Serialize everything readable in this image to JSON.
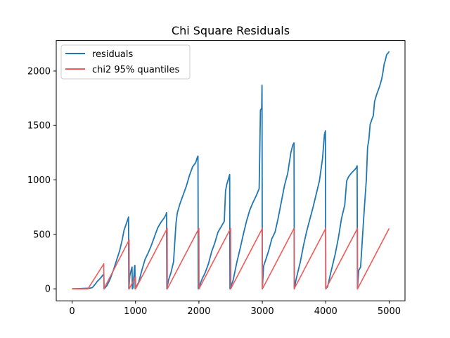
{
  "chart_data": {
    "type": "line",
    "title": "Chi Square Residuals",
    "xlabel": "",
    "ylabel": "",
    "xlim": [
      -250,
      5250
    ],
    "ylim": [
      -110,
      2280
    ],
    "xticks": [
      0,
      1000,
      2000,
      3000,
      4000,
      5000
    ],
    "yticks": [
      0,
      500,
      1000,
      1500,
      2000
    ],
    "grid": false,
    "legend_position": "upper-left",
    "series": [
      {
        "name": "residuals",
        "color": "#1f77b4",
        "points": [
          [
            0,
            0
          ],
          [
            120,
            2
          ],
          [
            200,
            4
          ],
          [
            280,
            6
          ],
          [
            320,
            12
          ],
          [
            360,
            40
          ],
          [
            400,
            70
          ],
          [
            450,
            100
          ],
          [
            490,
            130
          ],
          [
            500,
            130
          ],
          [
            505,
            0
          ],
          [
            550,
            30
          ],
          [
            600,
            90
          ],
          [
            650,
            170
          ],
          [
            700,
            260
          ],
          [
            750,
            350
          ],
          [
            790,
            450
          ],
          [
            820,
            540
          ],
          [
            850,
            590
          ],
          [
            880,
            640
          ],
          [
            890,
            660
          ],
          [
            895,
            0
          ],
          [
            910,
            120
          ],
          [
            930,
            170
          ],
          [
            945,
            200
          ],
          [
            950,
            0
          ],
          [
            960,
            10
          ],
          [
            975,
            130
          ],
          [
            985,
            200
          ],
          [
            990,
            215
          ],
          [
            995,
            0
          ],
          [
            1050,
            60
          ],
          [
            1100,
            170
          ],
          [
            1150,
            270
          ],
          [
            1200,
            330
          ],
          [
            1250,
            400
          ],
          [
            1300,
            480
          ],
          [
            1350,
            560
          ],
          [
            1400,
            610
          ],
          [
            1450,
            650
          ],
          [
            1480,
            680
          ],
          [
            1490,
            700
          ],
          [
            1495,
            0
          ],
          [
            1520,
            80
          ],
          [
            1560,
            150
          ],
          [
            1600,
            250
          ],
          [
            1625,
            480
          ],
          [
            1640,
            610
          ],
          [
            1660,
            700
          ],
          [
            1700,
            780
          ],
          [
            1750,
            860
          ],
          [
            1800,
            940
          ],
          [
            1850,
            1040
          ],
          [
            1900,
            1120
          ],
          [
            1950,
            1160
          ],
          [
            1970,
            1200
          ],
          [
            1985,
            1220
          ],
          [
            1990,
            0
          ],
          [
            2050,
            90
          ],
          [
            2100,
            150
          ],
          [
            2150,
            230
          ],
          [
            2200,
            340
          ],
          [
            2250,
            420
          ],
          [
            2300,
            520
          ],
          [
            2350,
            570
          ],
          [
            2400,
            620
          ],
          [
            2420,
            900
          ],
          [
            2440,
            960
          ],
          [
            2470,
            1020
          ],
          [
            2485,
            1050
          ],
          [
            2490,
            0
          ],
          [
            2540,
            80
          ],
          [
            2600,
            250
          ],
          [
            2650,
            370
          ],
          [
            2700,
            500
          ],
          [
            2750,
            620
          ],
          [
            2800,
            720
          ],
          [
            2850,
            790
          ],
          [
            2900,
            850
          ],
          [
            2950,
            920
          ],
          [
            2970,
            1640
          ],
          [
            2990,
            1660
          ],
          [
            2995,
            1870
          ],
          [
            3000,
            0
          ],
          [
            3020,
            210
          ],
          [
            3050,
            260
          ],
          [
            3100,
            350
          ],
          [
            3150,
            460
          ],
          [
            3200,
            520
          ],
          [
            3250,
            650
          ],
          [
            3300,
            800
          ],
          [
            3350,
            950
          ],
          [
            3400,
            1060
          ],
          [
            3450,
            1250
          ],
          [
            3480,
            1320
          ],
          [
            3500,
            1340
          ],
          [
            3505,
            0
          ],
          [
            3530,
            80
          ],
          [
            3600,
            250
          ],
          [
            3650,
            400
          ],
          [
            3700,
            530
          ],
          [
            3750,
            640
          ],
          [
            3800,
            750
          ],
          [
            3850,
            870
          ],
          [
            3900,
            990
          ],
          [
            3950,
            1200
          ],
          [
            3980,
            1420
          ],
          [
            3995,
            1450
          ],
          [
            4000,
            0
          ],
          [
            4030,
            20
          ],
          [
            4080,
            150
          ],
          [
            4150,
            320
          ],
          [
            4200,
            470
          ],
          [
            4250,
            650
          ],
          [
            4300,
            770
          ],
          [
            4330,
            990
          ],
          [
            4360,
            1030
          ],
          [
            4400,
            1060
          ],
          [
            4450,
            1090
          ],
          [
            4480,
            1110
          ],
          [
            4495,
            1130
          ],
          [
            4500,
            0
          ],
          [
            4520,
            170
          ],
          [
            4550,
            200
          ],
          [
            4580,
            480
          ],
          [
            4610,
            750
          ],
          [
            4640,
            1000
          ],
          [
            4660,
            1300
          ],
          [
            4680,
            1370
          ],
          [
            4700,
            1510
          ],
          [
            4730,
            1560
          ],
          [
            4750,
            1590
          ],
          [
            4770,
            1720
          ],
          [
            4800,
            1780
          ],
          [
            4850,
            1860
          ],
          [
            4880,
            1920
          ],
          [
            4900,
            1980
          ],
          [
            4920,
            2060
          ],
          [
            4940,
            2100
          ],
          [
            4960,
            2150
          ],
          [
            4990,
            2170
          ],
          [
            5000,
            2180
          ]
        ]
      },
      {
        "name": "chi2 95% quantiles",
        "color": "#f05a5a",
        "points": [
          [
            0,
            0
          ],
          [
            250,
            0
          ],
          [
            500,
            230
          ],
          [
            502,
            0
          ],
          [
            900,
            450
          ],
          [
            902,
            0
          ],
          [
            1000,
            110
          ],
          [
            1002,
            0
          ],
          [
            1500,
            555
          ],
          [
            1502,
            0
          ],
          [
            2000,
            555
          ],
          [
            2002,
            0
          ],
          [
            2500,
            555
          ],
          [
            2502,
            0
          ],
          [
            3000,
            555
          ],
          [
            3002,
            0
          ],
          [
            3500,
            555
          ],
          [
            3502,
            0
          ],
          [
            4000,
            555
          ],
          [
            4002,
            0
          ],
          [
            4500,
            555
          ],
          [
            4502,
            0
          ],
          [
            5000,
            555
          ]
        ]
      }
    ]
  }
}
